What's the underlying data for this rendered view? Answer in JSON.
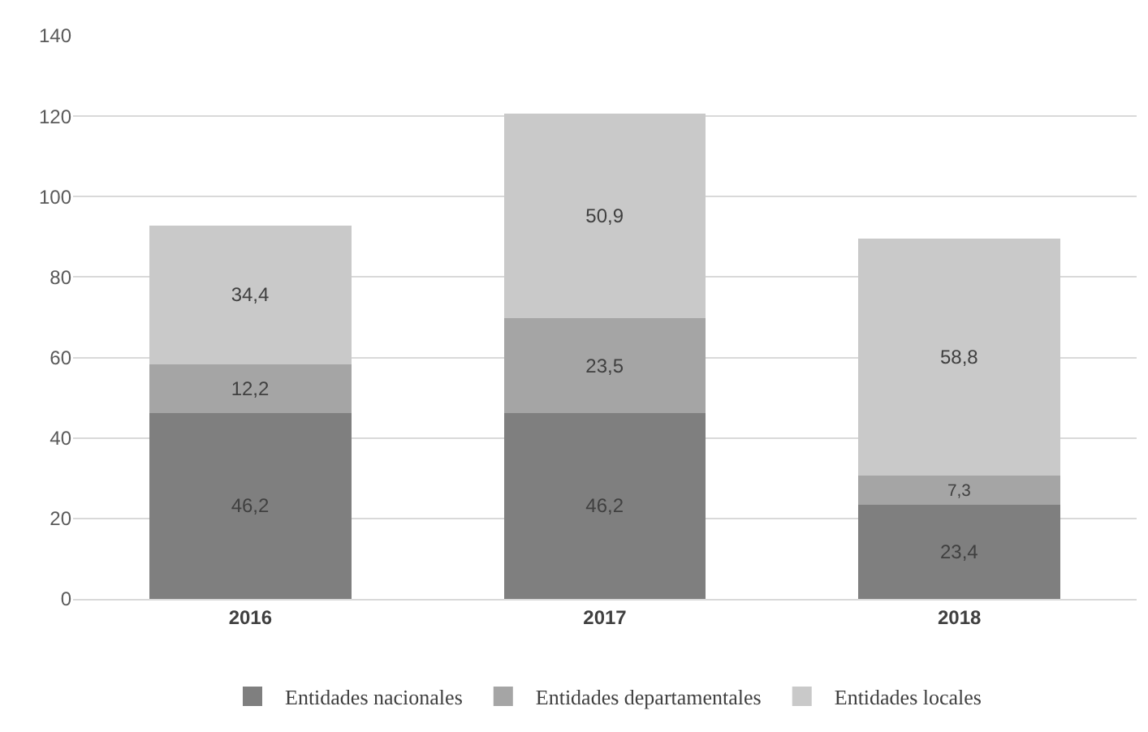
{
  "chart_data": {
    "type": "bar",
    "stacked": true,
    "categories": [
      "2016",
      "2017",
      "2018"
    ],
    "series": [
      {
        "name": "Entidades nacionales",
        "color": "#7f7f7f",
        "values": [
          46.2,
          46.2,
          23.4
        ],
        "value_labels": [
          "46,2",
          "46,2",
          "23,4"
        ]
      },
      {
        "name": "Entidades departamentales",
        "color": "#a5a5a5",
        "values": [
          12.2,
          23.5,
          7.3
        ],
        "value_labels": [
          "12,2",
          "23,5",
          "7,3"
        ]
      },
      {
        "name": "Entidades locales",
        "color": "#c9c9c9",
        "values": [
          34.4,
          50.9,
          58.8
        ],
        "value_labels": [
          "34,4",
          "50,9",
          "58,8"
        ]
      }
    ],
    "ylim": [
      0,
      140
    ],
    "yticks": [
      0,
      20,
      40,
      60,
      80,
      100,
      120,
      140
    ],
    "grid": "y",
    "legend": "bottom"
  }
}
